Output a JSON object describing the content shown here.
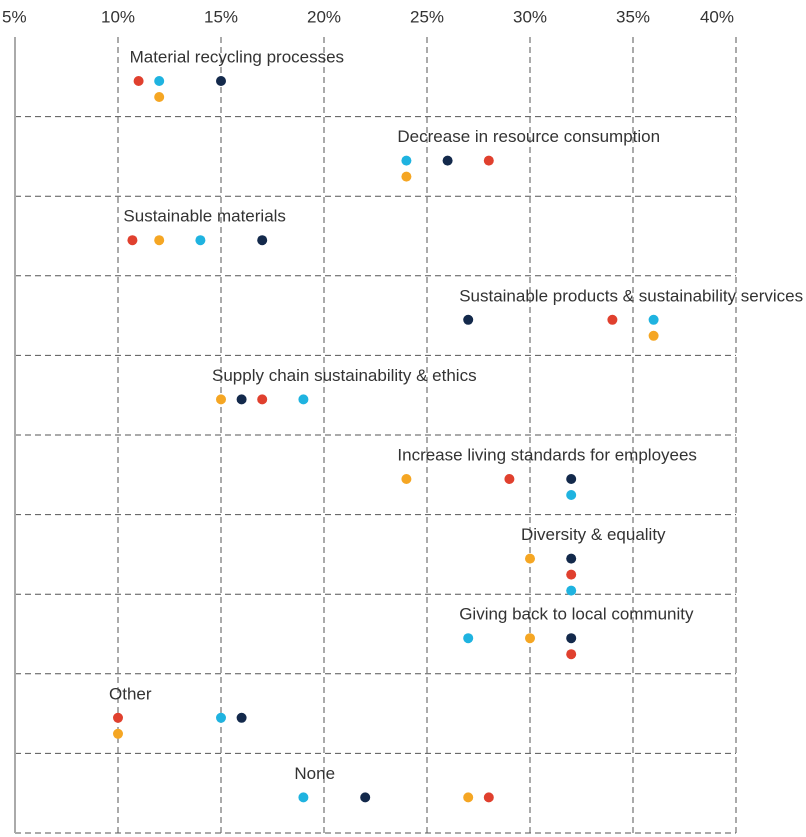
{
  "chart_data": {
    "type": "dot",
    "categories": [
      "Material recycling processes",
      "Decrease in resource consumption",
      "Sustainable materials",
      "Sustainable products & sustainability services",
      "Supply chain sustainability & ethics",
      "Increase living standards for employees",
      "Diversity & equality",
      "Giving back to local community",
      "Other",
      "None"
    ],
    "series": [
      {
        "color": "#13294b",
        "values": [
          15,
          26,
          17,
          27,
          16,
          32,
          32,
          32,
          16,
          22
        ]
      },
      {
        "color": "#e0402e",
        "values": [
          11,
          28,
          10.7,
          34,
          17,
          29,
          32,
          32,
          10,
          28
        ]
      },
      {
        "color": "#1fb3e0",
        "values": [
          12,
          24,
          14,
          36,
          19,
          32,
          32,
          27,
          15,
          19
        ]
      },
      {
        "color": "#f5a623",
        "values": [
          12,
          24,
          12,
          36,
          15,
          24,
          30,
          30,
          10,
          27
        ]
      }
    ],
    "xlim": [
      5,
      40
    ],
    "xticks": [
      {
        "value": 5,
        "label": "5%"
      },
      {
        "value": 10,
        "label": "10%"
      },
      {
        "value": 15,
        "label": "15%"
      },
      {
        "value": 20,
        "label": "20%"
      },
      {
        "value": 25,
        "label": "25%"
      },
      {
        "value": 30,
        "label": "30%"
      },
      {
        "value": 35,
        "label": "35%"
      },
      {
        "value": 40,
        "label": "40%"
      }
    ],
    "grid": true
  }
}
